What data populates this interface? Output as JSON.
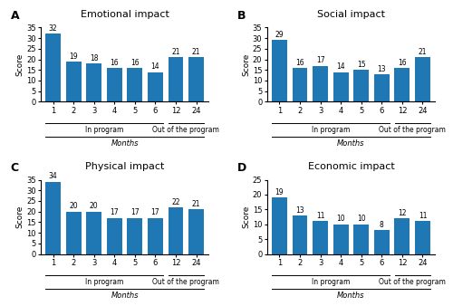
{
  "chart_data": [
    {
      "type": "bar",
      "title": "Emotional impact",
      "categories": [
        "1",
        "2",
        "3",
        "4",
        "5",
        "6",
        "12",
        "24"
      ],
      "values": [
        32,
        19,
        18,
        16,
        16,
        14,
        21,
        21
      ],
      "ylim": [
        0,
        35
      ],
      "yticks": [
        0,
        5,
        10,
        15,
        20,
        25,
        30,
        35
      ],
      "y_label": "Score",
      "x_label": "Months",
      "data_labels": true,
      "annotations": [
        {
          "text": "A"
        },
        {
          "text": "In program",
          "span": [
            "1",
            "6"
          ]
        },
        {
          "text": "Out of the program",
          "span": [
            "12",
            "24"
          ]
        }
      ]
    },
    {
      "type": "bar",
      "title": "Social impact",
      "categories": [
        "1",
        "2",
        "3",
        "4",
        "5",
        "6",
        "12",
        "24"
      ],
      "values": [
        29,
        16,
        17,
        14,
        15,
        13,
        16,
        21
      ],
      "ylim": [
        0,
        35
      ],
      "yticks": [
        0,
        5,
        10,
        15,
        20,
        25,
        30,
        35
      ],
      "y_label": "Score",
      "x_label": "Months",
      "data_labels": true,
      "annotations": [
        {
          "text": "B"
        },
        {
          "text": "In program",
          "span": [
            "1",
            "6"
          ]
        },
        {
          "text": "Out of the program",
          "span": [
            "12",
            "24"
          ]
        }
      ]
    },
    {
      "type": "bar",
      "title": "Physical impact",
      "categories": [
        "1",
        "2",
        "3",
        "4",
        "5",
        "6",
        "12",
        "24"
      ],
      "values": [
        34,
        20,
        20,
        17,
        17,
        17,
        22,
        21
      ],
      "ylim": [
        0,
        35
      ],
      "yticks": [
        0,
        5,
        10,
        15,
        20,
        25,
        30,
        35
      ],
      "y_label": "Score",
      "x_label": "Months",
      "data_labels": true,
      "annotations": [
        {
          "text": "C"
        },
        {
          "text": "In program",
          "span": [
            "1",
            "6"
          ]
        },
        {
          "text": "Out of the program",
          "span": [
            "12",
            "24"
          ]
        }
      ]
    },
    {
      "type": "bar",
      "title": "Economic impact",
      "categories": [
        "1",
        "2",
        "3",
        "4",
        "5",
        "6",
        "12",
        "24"
      ],
      "values": [
        19,
        13,
        11,
        10,
        10,
        8,
        12,
        11
      ],
      "ylim": [
        0,
        25
      ],
      "yticks": [
        0,
        5,
        10,
        15,
        20,
        25
      ],
      "y_label": "Score",
      "x_label": "Months",
      "data_labels": true,
      "annotations": [
        {
          "text": "D"
        },
        {
          "text": "In program",
          "span": [
            "1",
            "6"
          ]
        },
        {
          "text": "Out of the program",
          "span": [
            "12",
            "24"
          ]
        }
      ]
    }
  ]
}
